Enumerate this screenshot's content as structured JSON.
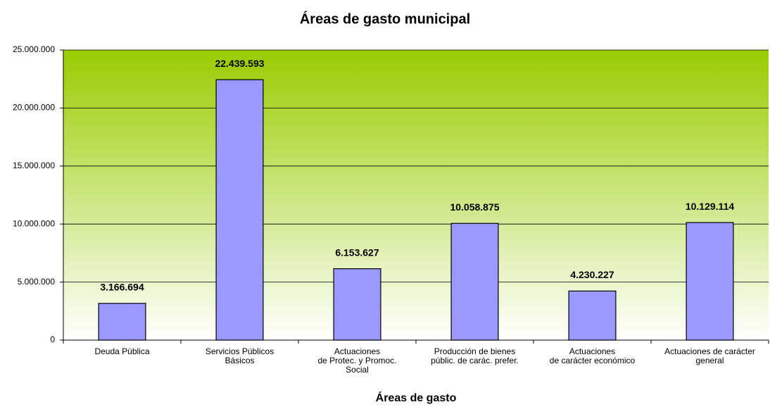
{
  "chart_data": {
    "type": "bar",
    "title": "Áreas de gasto municipal",
    "x_label": "Áreas de gasto",
    "categories": [
      "Deuda Pública",
      "Servicios Públicos\nBásicos",
      "Actuaciones\nde Protec. y Promoc.\nSocial",
      "Producción de bienes\npúblic. de carác. prefer.",
      "Actuaciones\nde carácter económico",
      "Actuaciones de carácter\ngeneral"
    ],
    "values": [
      3166694,
      22439593,
      6153627,
      10058875,
      4230227,
      10129114
    ],
    "value_labels": [
      "3.166.694",
      "22.439.593",
      "6.153.627",
      "10.058.875",
      "4.230.227",
      "10.129.114"
    ],
    "color": "#9999ff",
    "ylim": [
      0,
      25000000
    ],
    "yticks": [
      0,
      {
        "value": 5000000,
        "label": "5.000.000"
      },
      {
        "value": 10000000,
        "label": "10.000.000"
      },
      {
        "value": 15000000,
        "label": "15.000.000"
      },
      {
        "value": 20000000,
        "label": "20.000.000"
      },
      {
        "value": 25000000,
        "label": "25.000.000"
      }
    ],
    "grid": true
  }
}
